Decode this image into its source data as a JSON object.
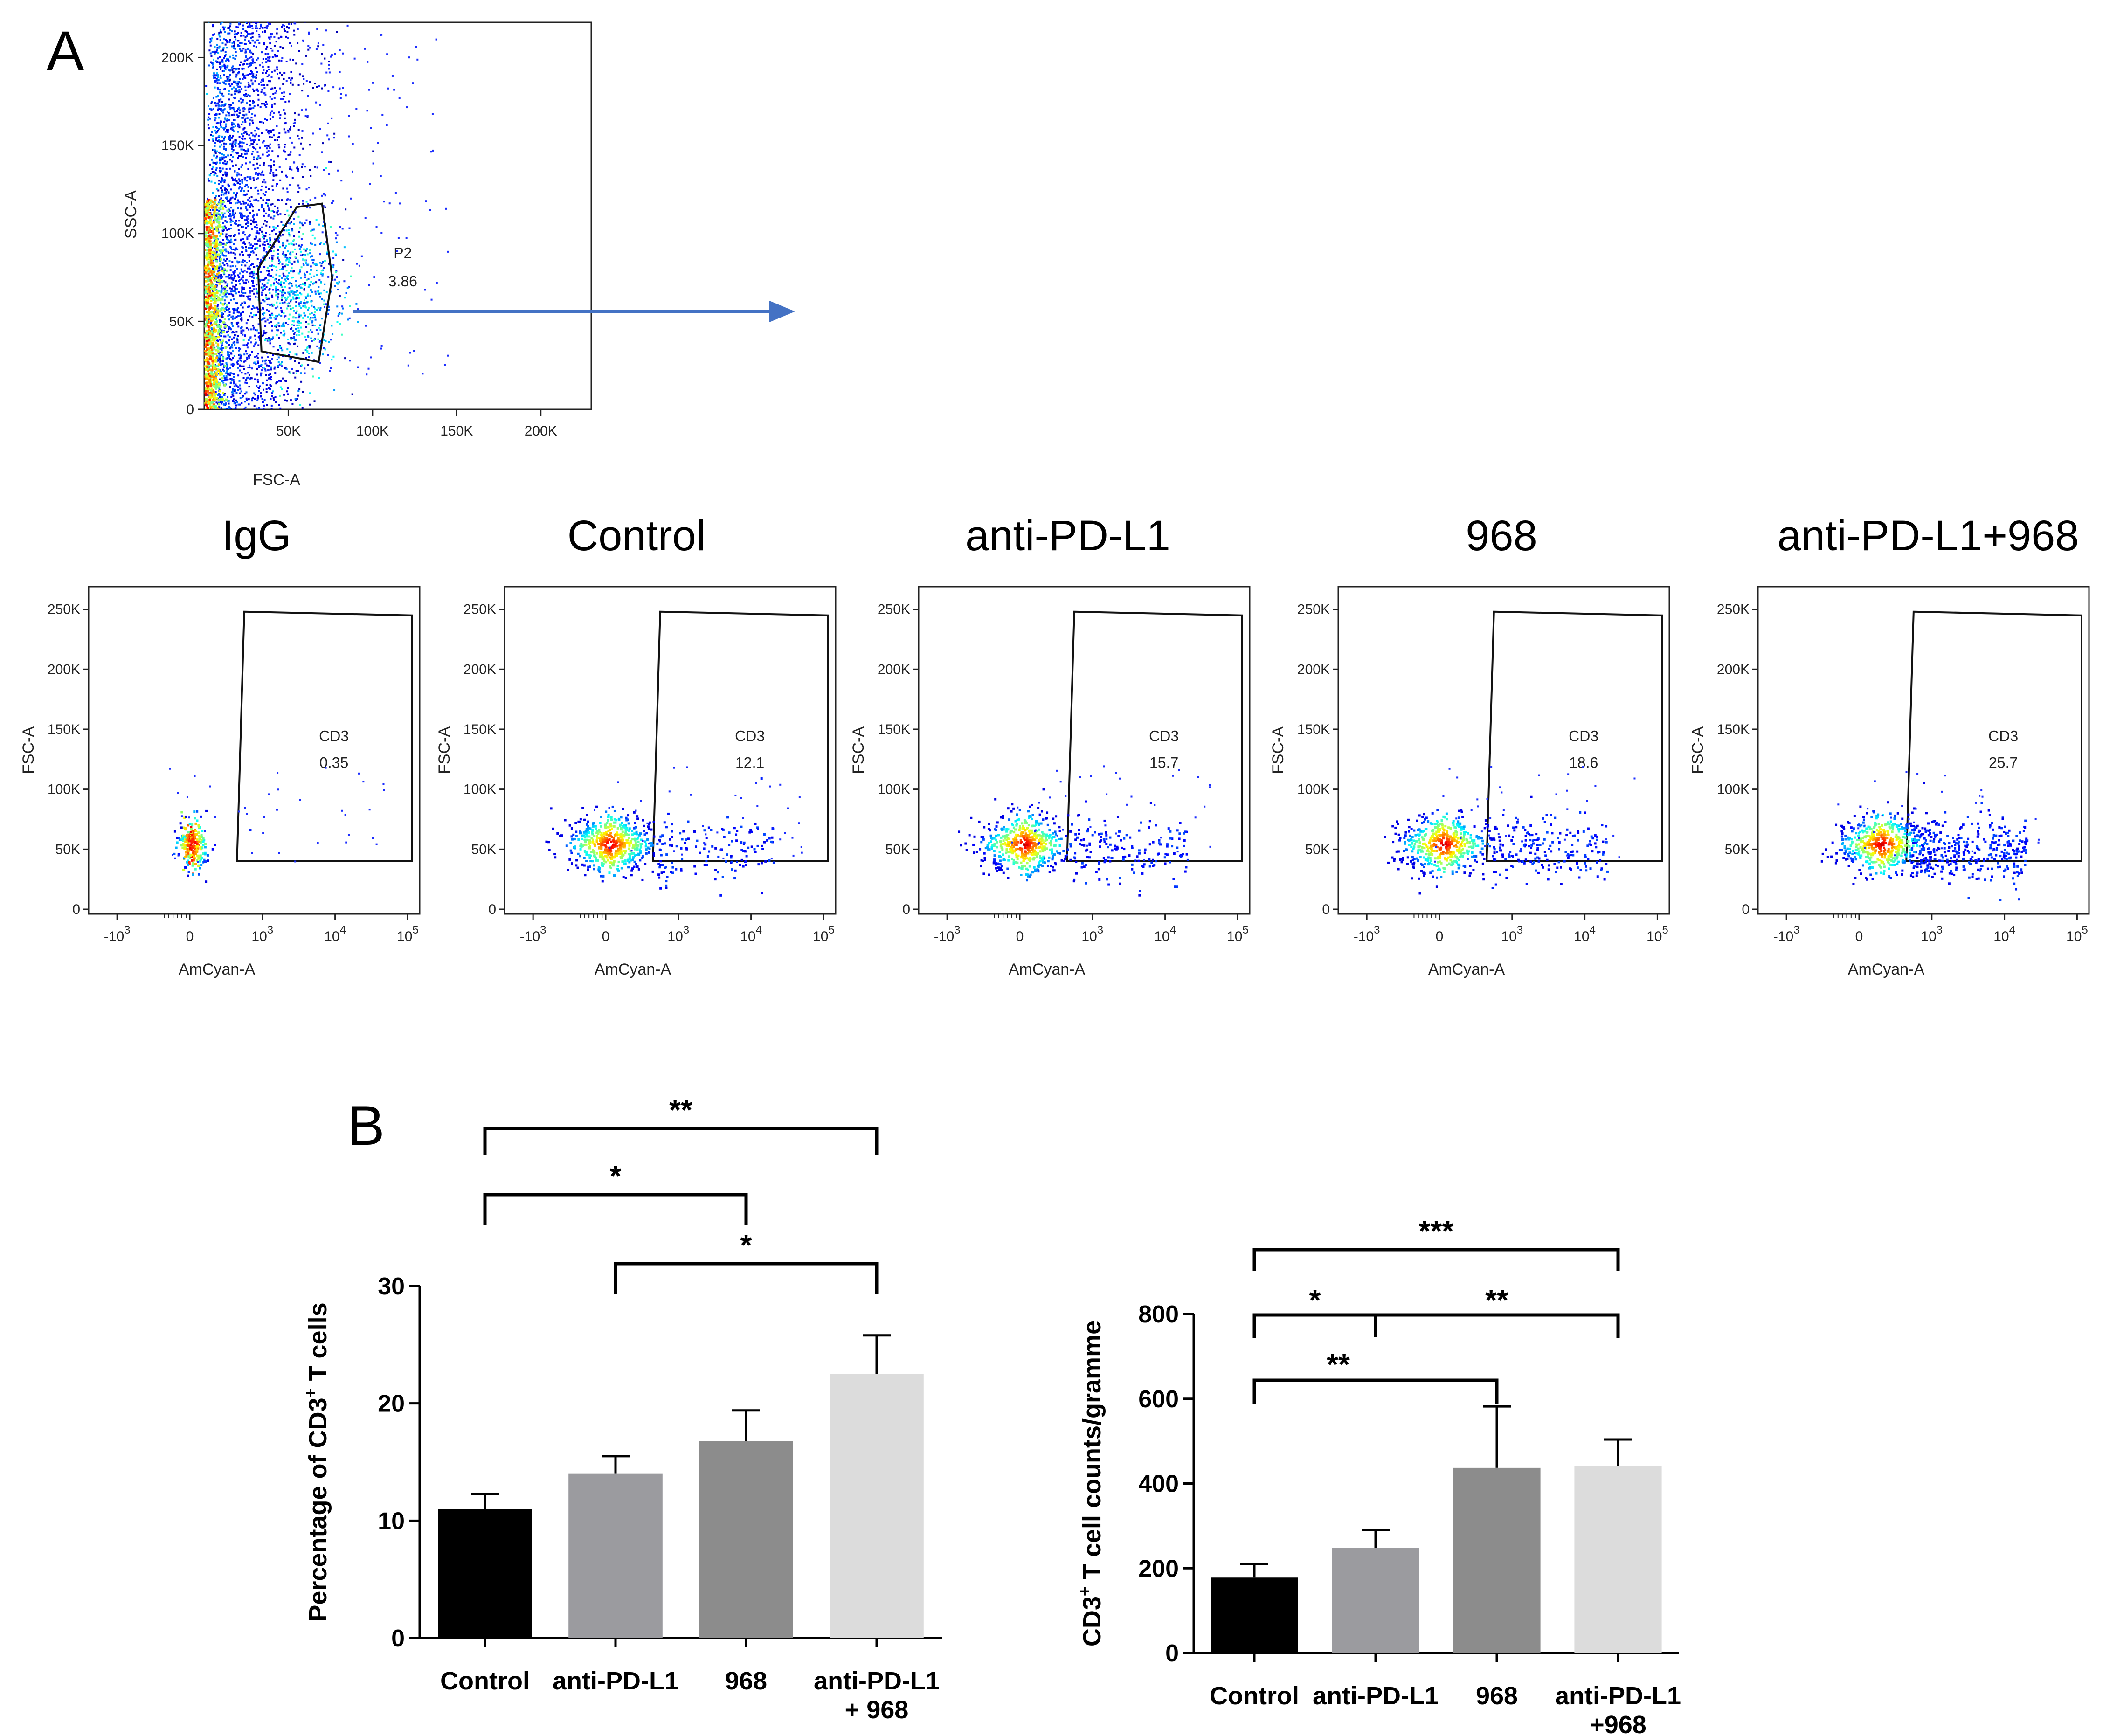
{
  "panel_labels": [
    "A",
    "B"
  ],
  "chart_data": [
    {
      "type": "scatter",
      "panel": "A",
      "xlabel": "FSC-A",
      "ylabel": "SSC-A",
      "xlim": [
        0,
        230000
      ],
      "ylim": [
        0,
        220000
      ],
      "x_ticks": [
        "50K",
        "100K",
        "150K",
        "200K"
      ],
      "x_tick_values": [
        50000,
        100000,
        150000,
        200000
      ],
      "y_ticks": [
        "0",
        "50K",
        "100K",
        "150K",
        "200K"
      ],
      "y_tick_values": [
        0,
        50000,
        100000,
        150000,
        200000
      ],
      "gate": {
        "name": "P2",
        "value": "3.86",
        "polygon": [
          [
            55000,
            115000
          ],
          [
            70000,
            117000
          ],
          [
            76000,
            75000
          ],
          [
            68000,
            27000
          ],
          [
            34000,
            33000
          ],
          [
            32000,
            80000
          ]
        ]
      },
      "arrow": true
    },
    {
      "type": "scatter",
      "xlabel": "AmCyan-A",
      "ylabel": "FSC-A",
      "y_ticks": [
        "0",
        "50K",
        "100K",
        "150K",
        "200K",
        "250K"
      ],
      "y_tick_values": [
        0,
        50000,
        100000,
        150000,
        200000,
        250000
      ],
      "x_ticks": [
        {
          "base": "-10",
          "exp": "3",
          "pos": -1
        },
        {
          "base": "0",
          "exp": "",
          "pos": 0
        },
        {
          "base": "10",
          "exp": "3",
          "pos": 1
        },
        {
          "base": "10",
          "exp": "4",
          "pos": 2
        },
        {
          "base": "10",
          "exp": "5",
          "pos": 3
        }
      ],
      "groups": [
        {
          "title": "IgG",
          "gate_name": "CD3",
          "gate_value": "0.35",
          "percent": 0.35
        },
        {
          "title": "Control",
          "gate_name": "CD3",
          "gate_value": "12.1",
          "percent": 12.1
        },
        {
          "title": "anti-PD-L1",
          "gate_name": "CD3",
          "gate_value": "15.7",
          "percent": 15.7
        },
        {
          "title": "968",
          "gate_name": "CD3",
          "gate_value": "18.6",
          "percent": 18.6
        },
        {
          "title": "anti-PD-L1+968",
          "gate_name": "CD3",
          "gate_value": "25.7",
          "percent": 25.7
        }
      ]
    },
    {
      "type": "bar",
      "panel": "B",
      "ylabel_main": "Percentage of CD3",
      "ylabel_sup": "+",
      "ylabel_tail": " T cells",
      "ylim": [
        0,
        30
      ],
      "y_ticks": [
        0,
        10,
        20,
        30
      ],
      "categories": [
        [
          "Control"
        ],
        [
          "anti-PD-L1"
        ],
        [
          "968"
        ],
        [
          "anti-PD-L1",
          "+ 968"
        ]
      ],
      "values": [
        11.0,
        14.0,
        16.8,
        22.5
      ],
      "errors": [
        1.3,
        1.5,
        2.6,
        3.3
      ],
      "colors": [
        "#000000",
        "#9b9b9f",
        "#8c8c8c",
        "#dcdcdc"
      ],
      "significance": [
        {
          "from": 0,
          "to": 3,
          "label": "**"
        },
        {
          "from": 0,
          "to": 2,
          "label": "*"
        },
        {
          "from": 1,
          "to": 3,
          "label": "*"
        }
      ]
    },
    {
      "type": "bar",
      "ylabel_main": "CD3",
      "ylabel_sup": "+",
      "ylabel_tail": " T cell counts/gramme",
      "ylim": [
        0,
        800
      ],
      "y_ticks": [
        0,
        200,
        400,
        600,
        800
      ],
      "categories": [
        [
          "Control"
        ],
        [
          "anti-PD-L1"
        ],
        [
          "968"
        ],
        [
          "anti-PD-L1",
          "+968"
        ]
      ],
      "values": [
        178,
        248,
        437,
        442
      ],
      "errors": [
        32,
        42,
        145,
        62
      ],
      "colors": [
        "#000000",
        "#9b9b9f",
        "#8c8c8c",
        "#dcdcdc"
      ],
      "significance": [
        {
          "from": 0,
          "to": 3,
          "label": "***"
        },
        {
          "from": 0,
          "to": 3,
          "mid": 1,
          "label_left": "*",
          "label_right": "**"
        },
        {
          "from": 0,
          "to": 2,
          "label": "**"
        }
      ]
    }
  ]
}
